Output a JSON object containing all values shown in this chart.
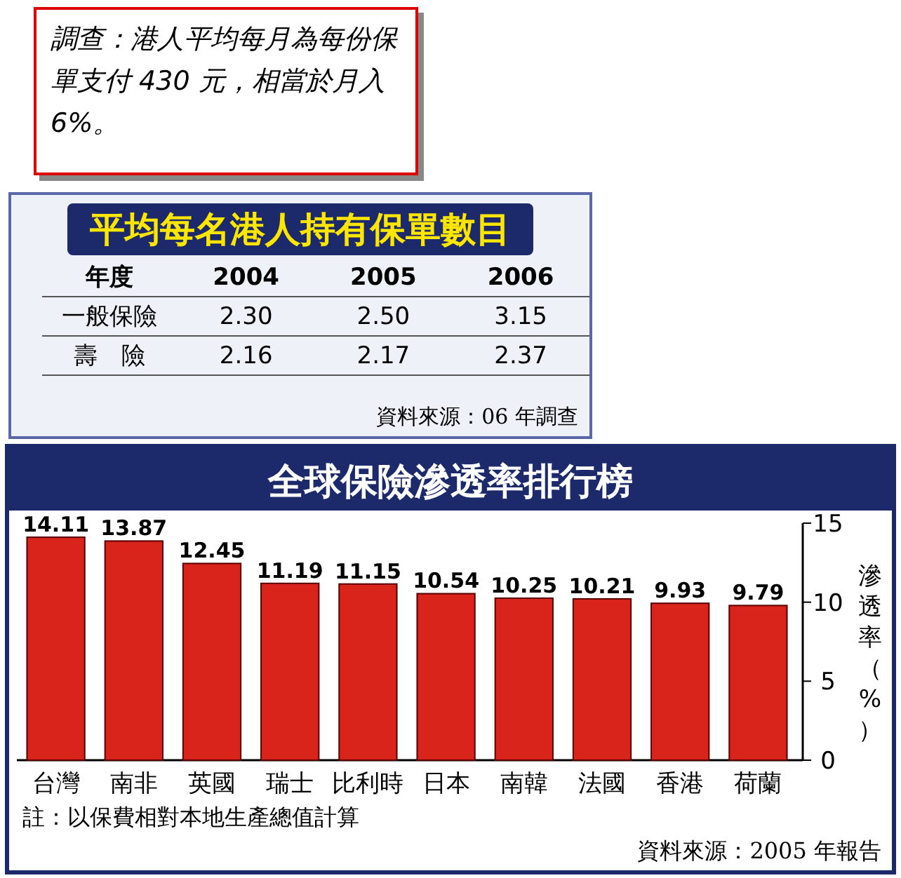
{
  "chart_data": [
    {
      "type": "other",
      "title": "平均每名港人持有保單數目",
      "xlabel": "年度",
      "categories": [
        "2004",
        "2005",
        "2006"
      ],
      "series": [
        {
          "name": "一般保險",
          "values": [
            2.3,
            2.5,
            3.15
          ],
          "value_labels": [
            "2.30",
            "2.50",
            "3.15"
          ]
        },
        {
          "name": "壽　險",
          "values": [
            2.16,
            2.17,
            2.37
          ],
          "value_labels": [
            "2.16",
            "2.17",
            "2.37"
          ]
        }
      ],
      "annotations": [
        "調查：港人平均每月為每份保單支付 430 元，相當於月入 6%。",
        "資料來源：06 年調查"
      ]
    },
    {
      "type": "bar",
      "title": "全球保險滲透率排行榜",
      "categories": [
        "台灣",
        "南非",
        "英國",
        "瑞士",
        "比利時",
        "日本",
        "南韓",
        "法國",
        "香港",
        "荷蘭"
      ],
      "values": [
        14.11,
        13.87,
        12.45,
        11.19,
        11.15,
        10.54,
        10.25,
        10.21,
        9.93,
        9.79
      ],
      "color": "#d9241c",
      "data_labels": true,
      "ylim": [
        0,
        15
      ],
      "yticks": [
        0,
        5,
        10,
        15
      ],
      "ylabel": "滲透率（%）",
      "annotations": [
        "註：以保費相對本地生產總值計算",
        "資料來源：2005 年報告"
      ]
    }
  ]
}
